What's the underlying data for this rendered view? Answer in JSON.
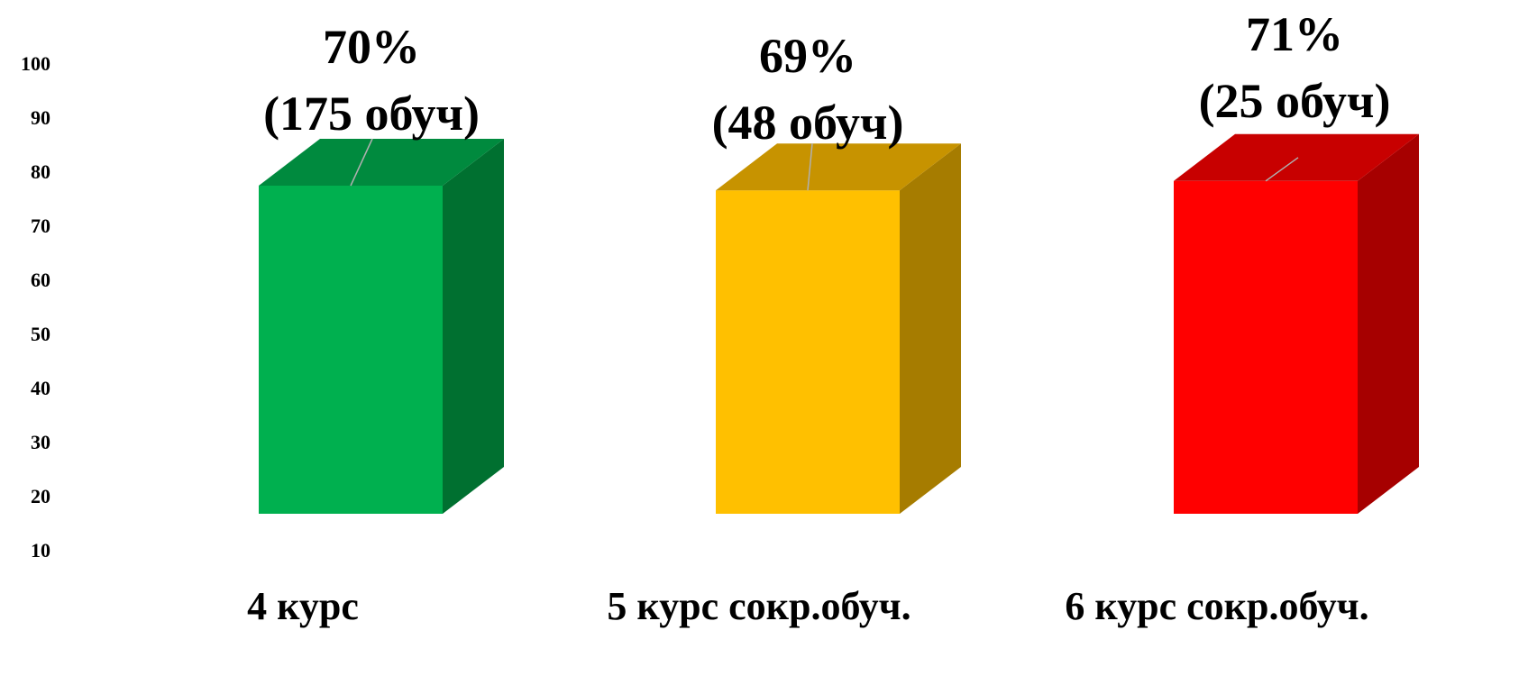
{
  "chart_data": {
    "type": "bar",
    "style": "3d-column",
    "categories": [
      "4 курс",
      "5 курс сокр.обуч.",
      "6 курс сокр.обуч."
    ],
    "values": [
      70,
      69,
      71
    ],
    "data_labels": [
      {
        "percent": "70%",
        "count": "(175 обуч)"
      },
      {
        "percent": "69%",
        "count": "(48 обуч)"
      },
      {
        "percent": "71%",
        "count": "(25 обуч)"
      }
    ],
    "colors": [
      {
        "front": "#00b04f",
        "side": "#007030",
        "top": "#008a3e"
      },
      {
        "front": "#ffc000",
        "side": "#a67c00",
        "top": "#c79300"
      },
      {
        "front": "#ff0000",
        "side": "#a60000",
        "top": "#c80000"
      }
    ],
    "yticks": [
      "10",
      "20",
      "30",
      "40",
      "50",
      "60",
      "70",
      "80",
      "90",
      "100"
    ],
    "ylim": [
      10,
      100
    ],
    "grid": false,
    "legend": false,
    "title": "",
    "xlabel": "",
    "ylabel": ""
  }
}
